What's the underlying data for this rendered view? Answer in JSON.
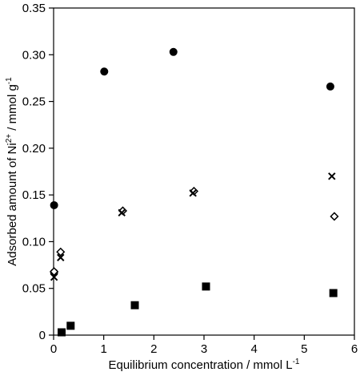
{
  "chart_data": {
    "type": "scatter",
    "title": "",
    "xlabel": "Equilibrium concentration / mmol L",
    "xlabel_sup": "-1",
    "ylabel_prefix": "Adsorbed amount of Ni",
    "ylabel_sup1": "2+",
    "ylabel_mid": " / mmol g",
    "ylabel_sup2": "-1",
    "xlim": [
      0,
      6
    ],
    "ylim": [
      0,
      0.35
    ],
    "x_ticks": [
      "0",
      "1",
      "2",
      "3",
      "4",
      "5",
      "6"
    ],
    "y_ticks": [
      "0",
      "0.05",
      "0.10",
      "0.15",
      "0.20",
      "0.25",
      "0.30",
      "0.35"
    ],
    "grid": false,
    "legend": "none",
    "series": [
      {
        "marker": "circle",
        "color": "#000000",
        "x": [
          0.01,
          0.01,
          1.01,
          2.39,
          5.52
        ],
        "y": [
          0.139,
          0.067,
          0.282,
          0.303,
          0.266
        ]
      },
      {
        "marker": "diamond",
        "color": "#000000",
        "x": [
          0.01,
          0.14,
          1.38,
          2.8,
          5.6
        ],
        "y": [
          0.068,
          0.089,
          0.133,
          0.154,
          0.127
        ]
      },
      {
        "marker": "cross",
        "color": "#000000",
        "x": [
          0.01,
          0.14,
          1.36,
          2.78,
          5.55
        ],
        "y": [
          0.062,
          0.083,
          0.131,
          0.152,
          0.17
        ]
      },
      {
        "marker": "square",
        "color": "#000000",
        "x": [
          0.16,
          0.34,
          1.62,
          3.04,
          5.58
        ],
        "y": [
          0.003,
          0.01,
          0.032,
          0.052,
          0.045
        ]
      }
    ]
  }
}
